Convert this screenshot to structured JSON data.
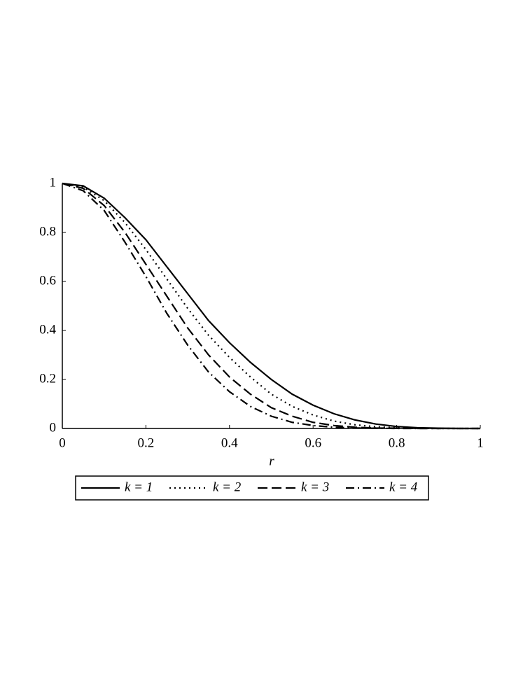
{
  "chart_data": {
    "type": "line",
    "x_label": "r",
    "x": [
      0,
      0.05,
      0.1,
      0.15,
      0.2,
      0.25,
      0.3,
      0.35,
      0.4,
      0.45,
      0.5,
      0.55,
      0.6,
      0.65,
      0.7,
      0.75,
      0.8,
      0.85,
      0.9,
      0.95,
      1
    ],
    "series": [
      {
        "name": "k = 1",
        "color": "#000000",
        "style": "solid",
        "values": [
          1,
          0.99,
          0.94,
          0.86,
          0.77,
          0.66,
          0.55,
          0.44,
          0.35,
          0.27,
          0.2,
          0.14,
          0.095,
          0.06,
          0.035,
          0.018,
          0.008,
          0.003,
          0.001,
          0,
          0
        ]
      },
      {
        "name": "k = 2",
        "color": "#000000",
        "style": "dotted",
        "values": [
          1,
          0.985,
          0.93,
          0.84,
          0.73,
          0.61,
          0.49,
          0.38,
          0.29,
          0.21,
          0.14,
          0.09,
          0.055,
          0.03,
          0.015,
          0.007,
          0.003,
          0.001,
          0,
          0,
          0
        ]
      },
      {
        "name": "k = 3",
        "color": "#000000",
        "style": "dashed",
        "values": [
          1,
          0.98,
          0.91,
          0.8,
          0.67,
          0.54,
          0.41,
          0.3,
          0.21,
          0.14,
          0.085,
          0.05,
          0.025,
          0.012,
          0.005,
          0.002,
          0.001,
          0,
          0,
          0,
          0
        ]
      },
      {
        "name": "k = 4",
        "color": "#000000",
        "style": "dashdot",
        "values": [
          1,
          0.97,
          0.89,
          0.76,
          0.62,
          0.47,
          0.34,
          0.23,
          0.15,
          0.09,
          0.05,
          0.025,
          0.012,
          0.005,
          0.002,
          0.001,
          0,
          0,
          0,
          0,
          0
        ]
      }
    ],
    "xlim": [
      0,
      1
    ],
    "xticks": [
      0,
      0.2,
      0.4,
      0.6,
      0.8,
      1
    ],
    "ylim": [
      0,
      1
    ],
    "yticks": [
      0,
      0.2,
      0.4,
      0.6,
      0.8,
      1
    ],
    "grid": false,
    "legend": "bottom"
  }
}
